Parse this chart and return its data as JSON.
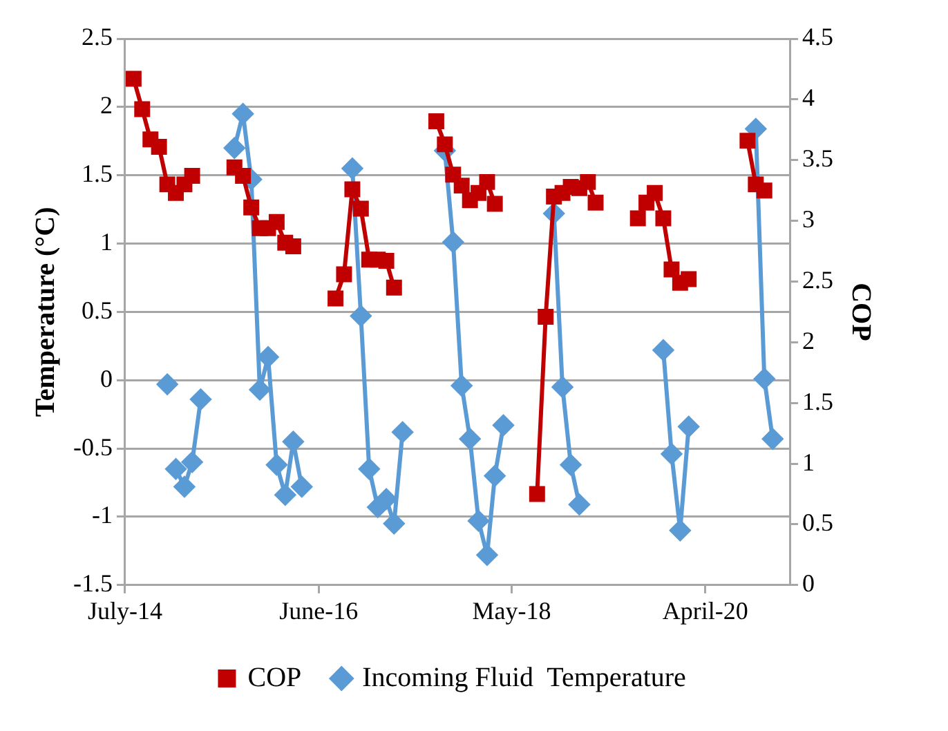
{
  "chart_data": {
    "type": "line",
    "xlabel": null,
    "ylabel": "Temperature (°C)",
    "y2label": "COP",
    "xlim": [
      "2014-07",
      "2021-02"
    ],
    "xticks": [
      {
        "value": "2014-07",
        "label": "July-14"
      },
      {
        "value": "2016-06",
        "label": "June-16"
      },
      {
        "value": "2018-05",
        "label": "May-18"
      },
      {
        "value": "2020-04",
        "label": "April-20"
      }
    ],
    "ylim": [
      -1.5,
      2.5
    ],
    "yticks": [
      -1.5,
      -1,
      -0.5,
      0,
      0.5,
      1,
      1.5,
      2,
      2.5
    ],
    "y2lim": [
      0,
      4.5
    ],
    "y2ticks": [
      0,
      0.5,
      1,
      1.5,
      2,
      2.5,
      3,
      3.5,
      4,
      4.5
    ],
    "grid": "y",
    "legend": "bottom",
    "line_style": "solid",
    "series": [
      {
        "name": "Incoming Fluid  Temperature",
        "color": "#5b9bd5",
        "marker": "diamond",
        "x": [
          "2014-12",
          "2014-12-16",
          "2015-01",
          "2015-02",
          "2015-03",
          "2015-04",
          "2015-06",
          "2015-08",
          "2015-09",
          "2015-10",
          "2015-11",
          "2015-12",
          "2016-01",
          "2016-02",
          "2016-03",
          "2016-04",
          "2016-07",
          "2016-10",
          "2016-11",
          "2016-12",
          "2017-01",
          "2017-02",
          "2017-03",
          "2017-04",
          "2017-06",
          "2017-09",
          "2017-10",
          "2017-11",
          "2017-12",
          "2018-01",
          "2018-02",
          "2018-03",
          "2018-04",
          "2018-07",
          "2018-10",
          "2018-11",
          "2018-12",
          "2019-01",
          "2019-06",
          "2019-11",
          "2019-12",
          "2020-01",
          "2020-02",
          "2020-06",
          "2020-10",
          "2020-11",
          "2020-12"
        ],
        "values": [
          -0.03,
          null,
          -0.65,
          -0.78,
          -0.6,
          -0.14,
          null,
          1.7,
          1.95,
          1.47,
          -0.07,
          0.17,
          -0.62,
          -0.84,
          -0.45,
          -0.78,
          null,
          1.55,
          0.47,
          -0.65,
          -0.93,
          -0.87,
          -1.05,
          -0.38,
          null,
          1.68,
          1.01,
          -0.04,
          -0.43,
          -1.03,
          -1.28,
          -0.7,
          -0.33,
          null,
          1.22,
          -0.05,
          -0.62,
          -0.91,
          null,
          0.22,
          -0.54,
          -1.1,
          -0.34,
          null,
          1.84,
          0.01,
          -0.43
        ]
      },
      {
        "name": "COP",
        "color": "#c00000",
        "marker": "square",
        "axis": "y2",
        "x": [
          "2014-08",
          "2014-09",
          "2014-10",
          "2014-11",
          "2014-12",
          "2015-01",
          "2015-02",
          "2015-03",
          "2015-05",
          "2015-08",
          "2015-09",
          "2015-10",
          "2015-11",
          "2015-12",
          "2016-01",
          "2016-02",
          "2016-03",
          "2016-05",
          "2016-08",
          "2016-09",
          "2016-10",
          "2016-11",
          "2016-12",
          "2017-01",
          "2017-02",
          "2017-03",
          "2017-05",
          "2017-08",
          "2017-09",
          "2017-10",
          "2017-11",
          "2017-12",
          "2018-01",
          "2018-02",
          "2018-03",
          "2018-05",
          "2018-08",
          "2018-09",
          "2018-10",
          "2018-11",
          "2018-12",
          "2019-01",
          "2019-02",
          "2019-03",
          "2019-05",
          "2019-08",
          "2019-09",
          "2019-10",
          "2019-11",
          "2019-12",
          "2020-01",
          "2020-02",
          "2020-05",
          "2020-09",
          "2020-10",
          "2020-11"
        ],
        "values": [
          4.17,
          3.92,
          3.67,
          3.61,
          3.3,
          3.23,
          3.3,
          3.37,
          null,
          3.44,
          3.37,
          3.11,
          2.94,
          2.94,
          2.99,
          2.82,
          2.79,
          null,
          2.36,
          2.56,
          3.26,
          3.1,
          2.68,
          2.68,
          2.67,
          2.45,
          null,
          3.82,
          3.63,
          3.38,
          3.29,
          3.17,
          3.23,
          3.32,
          3.14,
          null,
          0.75,
          2.21,
          3.2,
          3.23,
          3.28,
          3.27,
          3.32,
          3.15,
          null,
          3.02,
          3.15,
          3.23,
          3.02,
          2.6,
          2.49,
          2.52,
          null,
          3.66,
          3.3,
          3.25
        ]
      }
    ]
  }
}
